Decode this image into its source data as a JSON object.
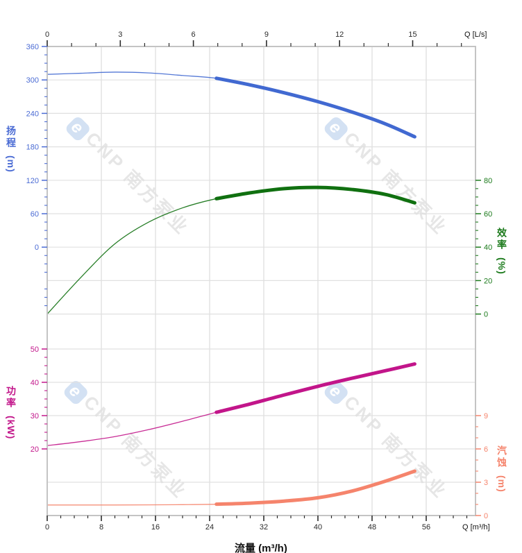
{
  "watermark": {
    "logo_letter": "e",
    "text": "CNP 南方泵业"
  },
  "chart_data": {
    "type": "line",
    "description": "Pump performance curves: head, efficiency, power, NPSH vs flow",
    "x_bottom": {
      "label": "Q [m³/h]",
      "axis_title": "流量 (m³/h)",
      "ticks": [
        0,
        8,
        16,
        24,
        32,
        40,
        48,
        56
      ],
      "minor_step": 2,
      "range": [
        0,
        63.3
      ]
    },
    "x_top": {
      "label": "Q [L/s]",
      "ticks": [
        0,
        3,
        6,
        9,
        12,
        15
      ],
      "minor_step": 1,
      "range": [
        0,
        17.6
      ]
    },
    "grid": "on",
    "axes": {
      "head": {
        "title": "扬程",
        "unit": "(m)",
        "ticks": [
          360,
          300,
          240,
          180,
          120,
          60,
          0
        ],
        "color": "#4a6bd4"
      },
      "efficiency": {
        "title": "效率",
        "unit": "(%)",
        "ticks": [
          80,
          60,
          40,
          20,
          0
        ],
        "color": "#1b7a1b"
      },
      "power": {
        "title": "功率",
        "unit": "(kW)",
        "ticks": [
          50,
          40,
          30,
          20
        ],
        "color": "#c2158a"
      },
      "npsh": {
        "title": "汽蚀",
        "unit": "(m)",
        "ticks": [
          9,
          6,
          3,
          0
        ],
        "color": "#f5846c"
      }
    },
    "duty_range_m3h": [
      25.2,
      54.3
    ],
    "series": [
      {
        "name": "head",
        "axis": "head",
        "color": "#4169d1",
        "unit": "m",
        "x": [
          0,
          5,
          10,
          15,
          20,
          25,
          30,
          35,
          40,
          45,
          50,
          54.3
        ],
        "y": [
          310,
          312,
          314,
          312.5,
          308,
          303,
          291,
          277,
          261,
          242.5,
          221,
          198
        ]
      },
      {
        "name": "efficiency",
        "axis": "efficiency",
        "color": "#107010",
        "unit": "%",
        "x": [
          0,
          5,
          10,
          15,
          20,
          25,
          30,
          35,
          40,
          45,
          50,
          54.3
        ],
        "y": [
          0,
          22,
          42,
          55,
          63.5,
          69,
          72.5,
          75,
          75.7,
          74.5,
          71.5,
          66.5
        ]
      },
      {
        "name": "power",
        "axis": "power",
        "color": "#c2158a",
        "unit": "kW",
        "x": [
          0,
          5,
          10,
          15,
          20,
          25,
          30,
          35,
          40,
          45,
          50,
          54.3
        ],
        "y": [
          21,
          22.2,
          23.7,
          25.8,
          28.3,
          31,
          33.5,
          36.2,
          38.8,
          41.2,
          43.5,
          45.5
        ]
      },
      {
        "name": "npsh",
        "axis": "npsh",
        "color": "#f5846c",
        "unit": "m",
        "x": [
          0,
          5,
          10,
          15,
          20,
          25,
          30,
          35,
          40,
          45,
          50,
          54.3
        ],
        "y": [
          0.95,
          0.95,
          0.95,
          0.96,
          0.98,
          1.02,
          1.12,
          1.3,
          1.6,
          2.2,
          3.1,
          4.0
        ]
      }
    ],
    "tick_color_xaxis": "#2b2b2b",
    "gridline_color": "#e0e0e0",
    "border_color": "#c4c4c4"
  }
}
